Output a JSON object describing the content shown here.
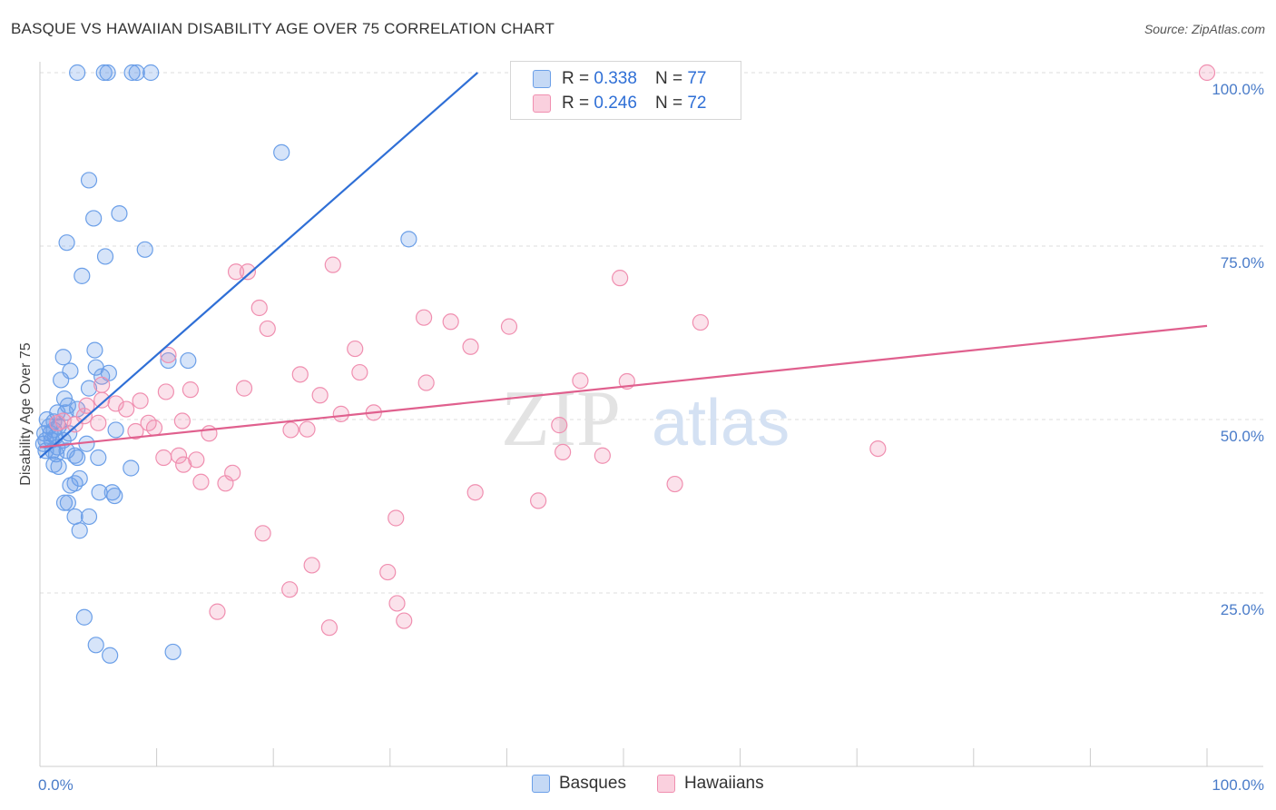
{
  "header": {
    "title": "BASQUE VS HAWAIIAN DISABILITY AGE OVER 75 CORRELATION CHART",
    "source": "Source: ZipAtlas.com"
  },
  "watermark": {
    "zip": "ZIP",
    "atlas": "atlas"
  },
  "legend": {
    "basques": {
      "r_label": "R =",
      "r_value": "0.338",
      "n_label": "N =",
      "n_value": "77"
    },
    "hawaiians": {
      "r_label": "R =",
      "r_value": "0.246",
      "n_label": "N =",
      "n_value": "72"
    }
  },
  "bottom_legend": {
    "basques": "Basques",
    "hawaiians": "Hawaiians"
  },
  "chart_data": {
    "type": "scatter",
    "title": "BASQUE VS HAWAIIAN DISABILITY AGE OVER 75 CORRELATION CHART",
    "xlabel": "",
    "ylabel": "Disability Age Over 75",
    "xlim": [
      0,
      100
    ],
    "ylim": [
      0,
      102
    ],
    "x_tick_labels": [
      "0.0%",
      "100.0%"
    ],
    "y_ticks": [
      25,
      50,
      75,
      100
    ],
    "y_tick_labels": [
      "25.0%",
      "50.0%",
      "75.0%",
      "100.0%"
    ],
    "grid": true,
    "legend_position": "top-center",
    "colors": {
      "basques": "#6b9fe8",
      "basques_line": "#2f6fd6",
      "hawaiians": "#f08fb0",
      "hawaiians_line": "#e0608e"
    },
    "series": [
      {
        "name": "Basques",
        "trend": {
          "x": [
            0,
            37.5
          ],
          "y": [
            44.5,
            100
          ]
        },
        "points": [
          [
            3.2,
            100
          ],
          [
            5.5,
            100
          ],
          [
            5.8,
            100
          ],
          [
            7.9,
            100
          ],
          [
            8.3,
            100
          ],
          [
            9.5,
            100
          ],
          [
            20.7,
            88.5
          ],
          [
            4.2,
            84.5
          ],
          [
            4.6,
            79
          ],
          [
            6.8,
            79.7
          ],
          [
            2.3,
            75.5
          ],
          [
            9.0,
            74.5
          ],
          [
            5.6,
            73.5
          ],
          [
            3.6,
            70.7
          ],
          [
            31.6,
            76
          ],
          [
            2.0,
            59
          ],
          [
            4.7,
            60
          ],
          [
            11.0,
            58.5
          ],
          [
            12.7,
            58.5
          ],
          [
            4.8,
            57.5
          ],
          [
            2.6,
            57
          ],
          [
            5.3,
            56.2
          ],
          [
            1.8,
            55.7
          ],
          [
            5.9,
            56.7
          ],
          [
            4.2,
            54.5
          ],
          [
            2.1,
            53
          ],
          [
            2.4,
            52
          ],
          [
            3.2,
            51.5
          ],
          [
            1.5,
            51
          ],
          [
            2.2,
            51
          ],
          [
            0.6,
            50
          ],
          [
            1.2,
            49.7
          ],
          [
            0.8,
            49
          ],
          [
            1.6,
            49
          ],
          [
            1.2,
            48.5
          ],
          [
            6.5,
            48.5
          ],
          [
            0.4,
            48
          ],
          [
            0.9,
            48
          ],
          [
            2.5,
            48
          ],
          [
            1.3,
            47.5
          ],
          [
            0.5,
            47
          ],
          [
            1.0,
            47
          ],
          [
            2.0,
            47
          ],
          [
            0.3,
            46.5
          ],
          [
            4.0,
            46.5
          ],
          [
            1.5,
            46
          ],
          [
            1.1,
            45.5
          ],
          [
            0.5,
            45.5
          ],
          [
            2.3,
            45.5
          ],
          [
            1.4,
            45
          ],
          [
            3.0,
            44.8
          ],
          [
            3.2,
            44.5
          ],
          [
            5.0,
            44.5
          ],
          [
            1.2,
            43.5
          ],
          [
            1.6,
            43.2
          ],
          [
            7.8,
            43
          ],
          [
            3.4,
            41.5
          ],
          [
            3.0,
            40.8
          ],
          [
            2.6,
            40.5
          ],
          [
            5.1,
            39.5
          ],
          [
            6.2,
            39.5
          ],
          [
            6.4,
            39
          ],
          [
            2.1,
            38
          ],
          [
            2.4,
            38
          ],
          [
            3.0,
            36
          ],
          [
            4.2,
            36
          ],
          [
            3.4,
            34
          ],
          [
            3.8,
            21.5
          ],
          [
            4.8,
            17.5
          ],
          [
            6.0,
            16
          ],
          [
            11.4,
            16.5
          ]
        ]
      },
      {
        "name": "Hawaiians",
        "trend": {
          "x": [
            0,
            100
          ],
          "y": [
            46,
            63.5
          ]
        },
        "points": [
          [
            100,
            100
          ],
          [
            16.8,
            71.3
          ],
          [
            17.8,
            71.3
          ],
          [
            25.1,
            72.3
          ],
          [
            49.7,
            70.4
          ],
          [
            18.8,
            66.1
          ],
          [
            32.9,
            64.7
          ],
          [
            35.2,
            64.1
          ],
          [
            56.6,
            64
          ],
          [
            40.2,
            63.4
          ],
          [
            19.5,
            63.1
          ],
          [
            36.9,
            60.5
          ],
          [
            27.0,
            60.2
          ],
          [
            11.0,
            59.3
          ],
          [
            22.3,
            56.5
          ],
          [
            27.4,
            56.8
          ],
          [
            46.3,
            55.6
          ],
          [
            50.3,
            55.5
          ],
          [
            33.1,
            55.3
          ],
          [
            5.3,
            55
          ],
          [
            17.5,
            54.5
          ],
          [
            12.9,
            54.3
          ],
          [
            10.8,
            54
          ],
          [
            24.0,
            53.5
          ],
          [
            5.3,
            52.8
          ],
          [
            8.6,
            52.7
          ],
          [
            6.5,
            52.3
          ],
          [
            4.0,
            52
          ],
          [
            7.4,
            51.5
          ],
          [
            28.6,
            51
          ],
          [
            25.8,
            50.8
          ],
          [
            3.8,
            50.5
          ],
          [
            5.0,
            49.5
          ],
          [
            2.0,
            49.8
          ],
          [
            9.3,
            49.5
          ],
          [
            44.5,
            49.2
          ],
          [
            1.5,
            49.5
          ],
          [
            12.2,
            49.8
          ],
          [
            3.0,
            49.3
          ],
          [
            9.8,
            48.8
          ],
          [
            8.2,
            48.3
          ],
          [
            21.5,
            48.5
          ],
          [
            22.9,
            48.6
          ],
          [
            14.5,
            48
          ],
          [
            71.8,
            45.8
          ],
          [
            44.8,
            45.3
          ],
          [
            48.2,
            44.8
          ],
          [
            10.6,
            44.5
          ],
          [
            11.9,
            44.8
          ],
          [
            12.3,
            43.5
          ],
          [
            13.4,
            44.2
          ],
          [
            16.5,
            42.3
          ],
          [
            13.8,
            41
          ],
          [
            15.9,
            40.8
          ],
          [
            54.4,
            40.7
          ],
          [
            37.3,
            39.5
          ],
          [
            42.7,
            38.3
          ],
          [
            30.5,
            35.8
          ],
          [
            19.1,
            33.6
          ],
          [
            23.3,
            29
          ],
          [
            29.8,
            28
          ],
          [
            21.4,
            25.5
          ],
          [
            30.6,
            23.5
          ],
          [
            15.2,
            22.3
          ],
          [
            24.8,
            20
          ],
          [
            31.2,
            21
          ]
        ]
      }
    ]
  }
}
